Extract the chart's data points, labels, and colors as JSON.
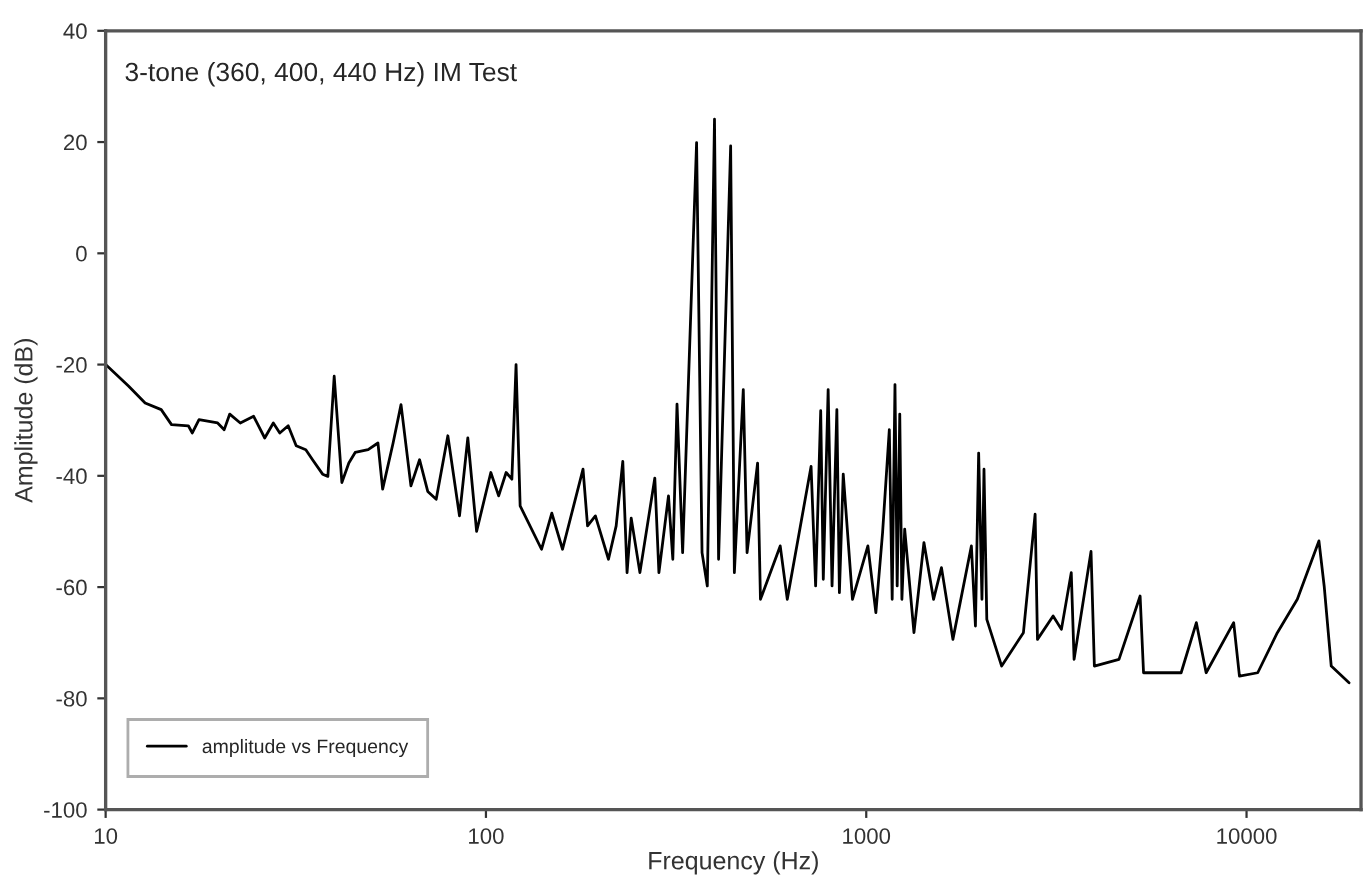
{
  "chart_data": {
    "type": "line",
    "title": "3-tone (360, 400, 440 Hz) IM Test",
    "xlabel": "Frequency (Hz)",
    "ylabel": "Amplitude (dB)",
    "log": "x",
    "xlim": [
      10,
      20000
    ],
    "xticks": [
      10,
      100,
      1000,
      10000
    ],
    "ylim": [
      -100,
      40
    ],
    "yticks": [
      -100,
      -80,
      -60,
      -40,
      -20,
      0,
      20,
      40
    ],
    "grid": false,
    "legend": "bottom left",
    "marker": "none",
    "line_style": "solid",
    "x": [
      10,
      11.5,
      12.7,
      14.0,
      14.9,
      16.5,
      16.9,
      17.6,
      19.7,
      20.5,
      21.2,
      22.6,
      24.5,
      26.2,
      27.6,
      28.7,
      30.2,
      31.7,
      33.6,
      35.0,
      37.2,
      38.4,
      39.9,
      41.8,
      43.6,
      45.3,
      49.0,
      52.0,
      53.5,
      57.0,
      59.8,
      63.5,
      66.9,
      70.3,
      74.0,
      79.4,
      85.2,
      89.6,
      94.5,
      103,
      108,
      113,
      117,
      120,
      123,
      140,
      149,
      159,
      180,
      185,
      194,
      210,
      220,
      229,
      235,
      241,
      254,
      278,
      285,
      302,
      310,
      318,
      329,
      358,
      370,
      382,
      399,
      409,
      440,
      450,
      475,
      486,
      518,
      527,
      594,
      620,
      716,
      736,
      759,
      771,
      794,
      813,
      837,
      850,
      870,
      920,
      1010,
      1060,
      1104,
      1150,
      1170,
      1190,
      1206,
      1225,
      1241,
      1262,
      1335,
      1418,
      1503,
      1577,
      1690,
      1890,
      1937,
      1975,
      2015,
      2040,
      2075,
      2270,
      2590,
      2780,
      2820,
      3100,
      3260,
      3460,
      3520,
      3900,
      3980,
      4620,
      5250,
      5360,
      6730,
      7380,
      7830,
      9250,
      9580,
      10700,
      12050,
      13600,
      15500,
      16000,
      16700,
      18600
    ],
    "series": [
      {
        "name": "amplitude vs Frequency",
        "color": "#000000",
        "values": [
          -20.0,
          -23.9,
          -26.9,
          -28.1,
          -30.8,
          -31.0,
          -32.3,
          -29.9,
          -30.5,
          -31.7,
          -28.9,
          -30.5,
          -29.3,
          -33.2,
          -30.5,
          -32.3,
          -31.0,
          -34.6,
          -35.3,
          -37.1,
          -39.7,
          -40.1,
          -22.1,
          -41.2,
          -37.7,
          -35.8,
          -35.3,
          -34.1,
          -42.4,
          -34.1,
          -27.2,
          -41.8,
          -37.1,
          -42.8,
          -44.2,
          -32.8,
          -47.2,
          -33.2,
          -50.0,
          -39.4,
          -43.6,
          -39.4,
          -40.6,
          -20.0,
          -45.4,
          -53.2,
          -46.7,
          -53.2,
          -38.8,
          -49.0,
          -47.2,
          -55.0,
          -49.0,
          -37.4,
          -57.4,
          -47.6,
          -57.4,
          -40.4,
          -57.4,
          -43.6,
          -55.0,
          -27.1,
          -53.8,
          19.9,
          -53.8,
          -59.8,
          24.1,
          -55.0,
          19.3,
          -57.4,
          -24.5,
          -53.8,
          -37.7,
          -62.2,
          -52.6,
          -62.2,
          -38.3,
          -59.8,
          -28.3,
          -58.6,
          -24.5,
          -59.8,
          -28.1,
          -61.0,
          -39.7,
          -62.2,
          -52.6,
          -64.6,
          -50.2,
          -31.7,
          -62.2,
          -23.6,
          -59.8,
          -28.9,
          -62.2,
          -49.6,
          -68.2,
          -52.0,
          -62.2,
          -56.5,
          -69.4,
          -52.6,
          -67.0,
          -35.9,
          -62.2,
          -38.8,
          -65.8,
          -74.2,
          -68.2,
          -46.9,
          -69.4,
          -65.2,
          -67.6,
          -57.4,
          -73.0,
          -53.6,
          -74.2,
          -73.0,
          -61.6,
          -75.4,
          -75.4,
          -66.4,
          -75.4,
          -66.4,
          -76.0,
          -75.4,
          -68.2,
          -62.2,
          -51.7,
          -59.8,
          -74.2,
          -77.2
        ]
      }
    ]
  }
}
